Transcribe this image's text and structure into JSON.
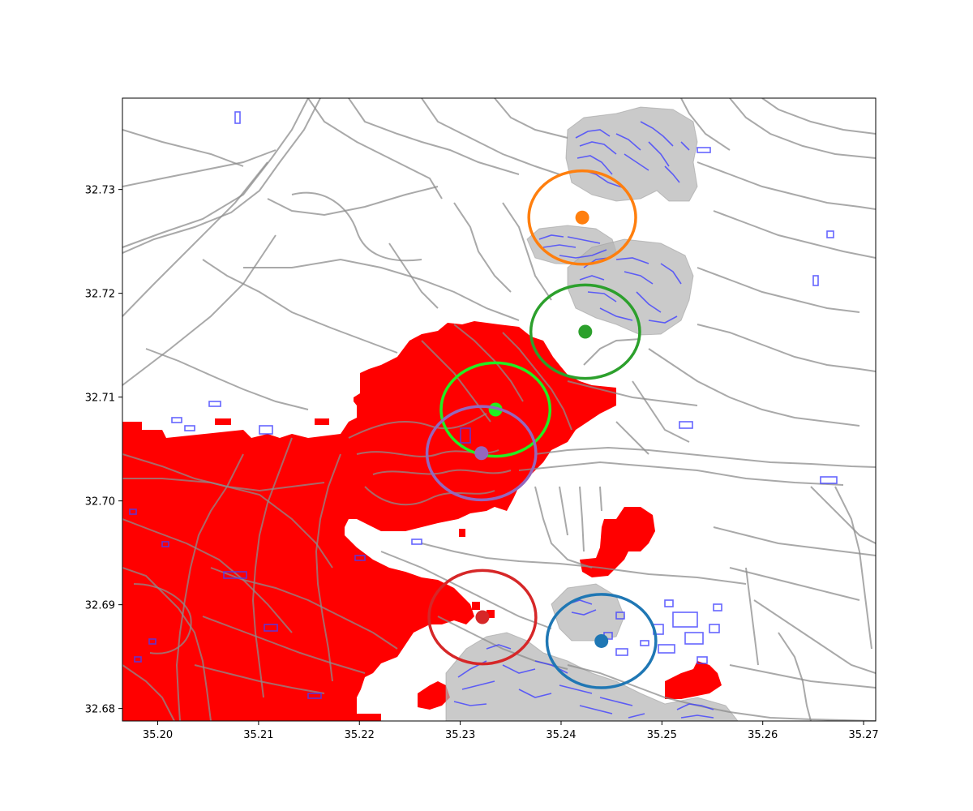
{
  "map": {
    "xlim": [
      35.1965,
      35.2712
    ],
    "ylim": [
      32.6788,
      32.7388
    ],
    "x_ticks": [
      {
        "value": 35.2,
        "label": "35.20"
      },
      {
        "value": 35.21,
        "label": "35.21"
      },
      {
        "value": 35.22,
        "label": "35.22"
      },
      {
        "value": 35.23,
        "label": "35.23"
      },
      {
        "value": 35.24,
        "label": "35.24"
      },
      {
        "value": 35.25,
        "label": "35.25"
      },
      {
        "value": 35.26,
        "label": "35.26"
      },
      {
        "value": 35.27,
        "label": "35.27"
      }
    ],
    "y_ticks": [
      {
        "value": 32.68,
        "label": "32.68"
      },
      {
        "value": 32.69,
        "label": "32.69"
      },
      {
        "value": 32.7,
        "label": "32.70"
      },
      {
        "value": 32.71,
        "label": "32.71"
      },
      {
        "value": 32.72,
        "label": "32.72"
      },
      {
        "value": 32.73,
        "label": "32.73"
      }
    ],
    "colors": {
      "roads": "#8c8c8c",
      "buildings": "#4040ff",
      "built_buffer": "#b4b4b4",
      "burned_area": "#ff0000"
    },
    "markers": [
      {
        "name": "orange",
        "color": "#ff7f0e",
        "lon": 35.2421,
        "lat": 32.7273,
        "radius_deg_lon": 0.0053,
        "radius_deg_lat": 0.0045
      },
      {
        "name": "green",
        "color": "#2ca02c",
        "lon": 35.2424,
        "lat": 32.7163,
        "radius_deg_lon": 0.0054,
        "radius_deg_lat": 0.0045
      },
      {
        "name": "lime",
        "color": "#22ee22",
        "lon": 35.2335,
        "lat": 32.7088,
        "radius_deg_lon": 0.0054,
        "radius_deg_lat": 0.0045
      },
      {
        "name": "purple",
        "color": "#9467bd",
        "lon": 35.2321,
        "lat": 32.7046,
        "radius_deg_lon": 0.0054,
        "radius_deg_lat": 0.0045
      },
      {
        "name": "red",
        "color": "#d62728",
        "lon": 35.2322,
        "lat": 32.6888,
        "radius_deg_lon": 0.0053,
        "radius_deg_lat": 0.0045
      },
      {
        "name": "blue",
        "color": "#1f77b4",
        "lon": 35.244,
        "lat": 32.6865,
        "radius_deg_lon": 0.0054,
        "radius_deg_lat": 0.0045
      }
    ]
  }
}
